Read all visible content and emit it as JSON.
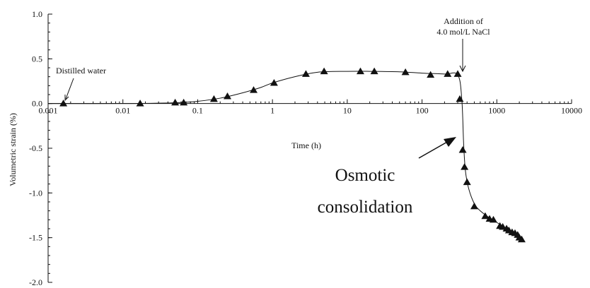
{
  "chart_data": {
    "type": "scatter",
    "xscale": "log",
    "xlim": [
      0.001,
      10000
    ],
    "ylim": [
      -2.0,
      1.0
    ],
    "xlabel": "Time (h)",
    "ylabel": "Volumetric strain (%)",
    "xticks": [
      {
        "value": 0.001,
        "label": "0.001"
      },
      {
        "value": 0.01,
        "label": "0.01"
      },
      {
        "value": 0.1,
        "label": "0.1"
      },
      {
        "value": 1,
        "label": "1"
      },
      {
        "value": 10,
        "label": "10"
      },
      {
        "value": 100,
        "label": "100"
      },
      {
        "value": 1000,
        "label": "1000"
      },
      {
        "value": 10000,
        "label": "10000"
      }
    ],
    "yticks": [
      {
        "value": 1.0,
        "label": "1.0"
      },
      {
        "value": 0.5,
        "label": "0.5"
      },
      {
        "value": 0.0,
        "label": "0.0"
      },
      {
        "value": -0.5,
        "label": "-0.5"
      },
      {
        "value": -1.0,
        "label": "-1.0"
      },
      {
        "value": -1.5,
        "label": "-1.5"
      },
      {
        "value": -2.0,
        "label": "-2.0"
      }
    ],
    "grid": false,
    "marker": "triangle",
    "series": [
      {
        "x": [
          0.0016,
          0.017,
          0.05,
          0.065,
          0.165,
          0.25,
          0.56,
          1.05,
          2.8,
          4.9,
          15,
          23,
          60,
          130,
          220,
          300,
          320,
          350,
          370,
          400,
          500,
          700,
          800,
          900,
          1100,
          1200,
          1350,
          1450,
          1600,
          1750,
          1900,
          2000,
          2150
        ],
        "y": [
          0.0,
          0.0,
          0.01,
          0.01,
          0.05,
          0.08,
          0.15,
          0.23,
          0.33,
          0.36,
          0.36,
          0.36,
          0.35,
          0.32,
          0.33,
          0.33,
          0.05,
          -0.52,
          -0.71,
          -0.88,
          -1.15,
          -1.26,
          -1.29,
          -1.3,
          -1.37,
          -1.38,
          -1.4,
          -1.42,
          -1.44,
          -1.45,
          -1.47,
          -1.5,
          -1.52
        ]
      }
    ],
    "curve": {
      "x": [
        0.001,
        0.01,
        0.03,
        0.06,
        0.1,
        0.2,
        0.4,
        0.7,
        1,
        2,
        4,
        10,
        20,
        50,
        100,
        200,
        300,
        340,
        360,
        380,
        420,
        500,
        600,
        800,
        1000,
        1300,
        1700,
        2200
      ],
      "y": [
        0.0,
        0.0,
        0.004,
        0.012,
        0.025,
        0.06,
        0.12,
        0.18,
        0.23,
        0.3,
        0.35,
        0.36,
        0.36,
        0.355,
        0.34,
        0.33,
        0.32,
        0.05,
        -0.45,
        -0.75,
        -0.95,
        -1.12,
        -1.2,
        -1.28,
        -1.33,
        -1.39,
        -1.45,
        -1.53
      ]
    },
    "annotations": [
      {
        "text": "Distilled water",
        "x": 0.0016,
        "y": 0.0
      },
      {
        "lines": [
          "Addition of",
          "4.0 mol/L NaCl"
        ],
        "x": 320,
        "y": 0.33
      },
      {
        "lines": [
          "Osmotic",
          "consolidation"
        ],
        "x": 350,
        "y": -0.45
      }
    ]
  }
}
